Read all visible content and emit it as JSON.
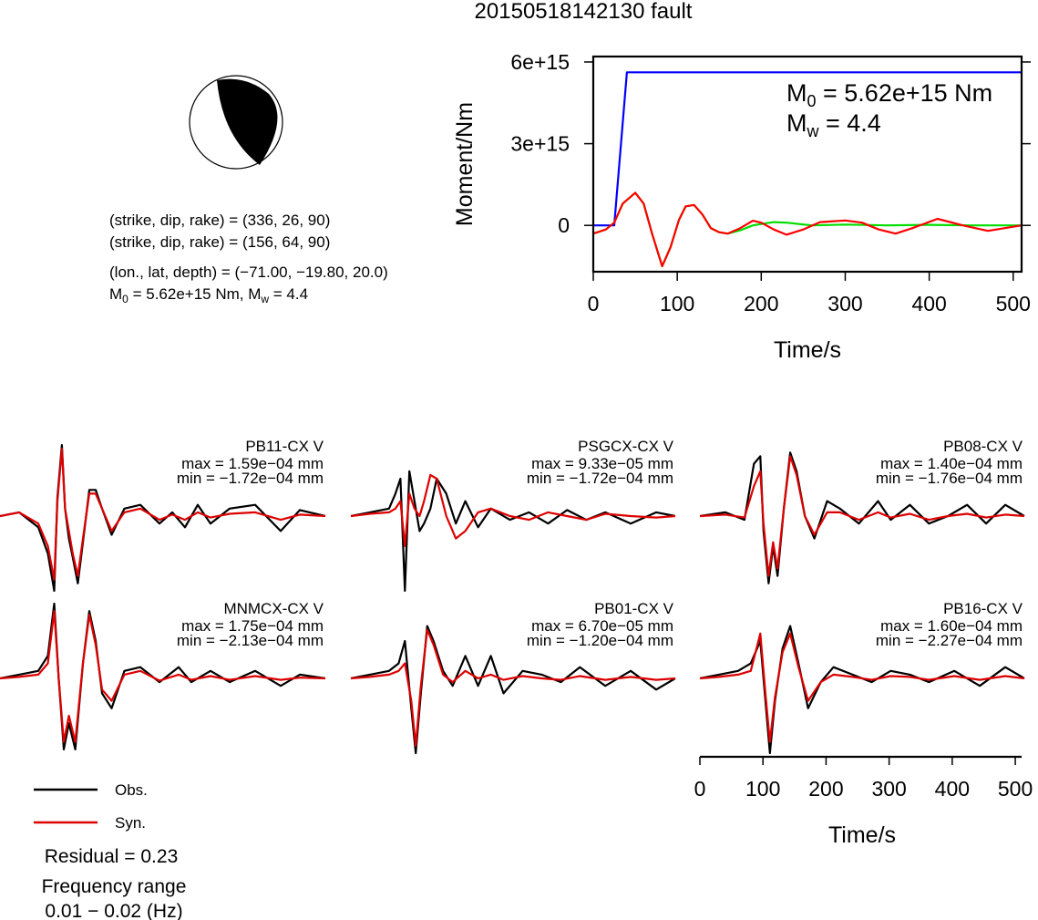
{
  "title": "20150518142130 fault",
  "mechanism": {
    "line1": "(strike, dip, rake) = (336, 26, 90)",
    "line2": "(strike, dip, rake) = (156, 64, 90)",
    "line3": "(lon., lat, depth) = (−71.00, −19.80, 20.0)",
    "line4_m0": "M",
    "line4_sub": "0",
    "line4_rest": " = 5.62e+15 Nm, M",
    "line4_sub2": "w",
    "line4_end": " = 4.4"
  },
  "chart_data": [
    {
      "type": "line",
      "name": "moment",
      "xlabel": "Time/s",
      "ylabel": "Moment/Nm",
      "xlim": [
        0,
        510
      ],
      "ylim": [
        -1700000000000000.0,
        6200000000000000.0
      ],
      "xticks": [
        "0",
        "100",
        "200",
        "300",
        "400",
        "500"
      ],
      "yticks": [
        "0",
        "3e+15",
        "6e+15"
      ],
      "annotation_m0": {
        "m": "M",
        "sub": "0",
        "rest": " = 5.62e+15 Nm"
      },
      "annotation_mw": {
        "m": "M",
        "sub": "w",
        "rest": " = 4.4"
      },
      "series": [
        {
          "color": "#0000ff",
          "x": [
            0,
            25,
            40,
            510
          ],
          "y": [
            0,
            0,
            5620000000000000.0,
            5620000000000000.0
          ]
        },
        {
          "color": "#00dd00",
          "x": [
            0,
            15,
            25,
            35,
            50,
            60,
            70,
            82,
            92,
            102,
            110,
            120,
            130,
            140,
            150,
            160,
            175,
            190,
            200,
            215,
            230,
            260,
            300,
            350,
            400,
            450,
            510
          ],
          "y": [
            -300000000000000.0,
            -150000000000000.0,
            100000000000000.0,
            800000000000000.0,
            1200000000000000.0,
            800000000000000.0,
            -300000000000000.0,
            -1500000000000000.0,
            -800000000000000.0,
            200000000000000.0,
            700000000000000.0,
            750000000000000.0,
            400000000000000.0,
            -100000000000000.0,
            -250000000000000.0,
            -300000000000000.0,
            -180000000000000.0,
            0,
            50000000000000.0,
            120000000000000.0,
            100000000000000.0,
            0,
            30000000000000.0,
            0,
            20000000000000.0,
            0,
            0
          ]
        },
        {
          "color": "#ff0000",
          "x": [
            0,
            15,
            25,
            35,
            50,
            60,
            70,
            82,
            92,
            102,
            110,
            120,
            130,
            140,
            150,
            160,
            175,
            190,
            200,
            215,
            230,
            250,
            270,
            300,
            320,
            340,
            360,
            380,
            410,
            440,
            470,
            510
          ],
          "y": [
            -300000000000000.0,
            -150000000000000.0,
            100000000000000.0,
            800000000000000.0,
            1200000000000000.0,
            800000000000000.0,
            -300000000000000.0,
            -1500000000000000.0,
            -800000000000000.0,
            200000000000000.0,
            700000000000000.0,
            750000000000000.0,
            400000000000000.0,
            -100000000000000.0,
            -250000000000000.0,
            -300000000000000.0,
            -100000000000000.0,
            170000000000000.0,
            100000000000000.0,
            -150000000000000.0,
            -340000000000000.0,
            -150000000000000.0,
            120000000000000.0,
            180000000000000.0,
            100000000000000.0,
            -150000000000000.0,
            -300000000000000.0,
            -100000000000000.0,
            240000000000000.0,
            0,
            -200000000000000.0,
            0
          ]
        }
      ]
    },
    {
      "type": "line",
      "name": "waveforms",
      "xlabel": "Time/s",
      "xlim": [
        0,
        510
      ],
      "xticks": [
        "0",
        "100",
        "200",
        "300",
        "400",
        "500"
      ],
      "legend": {
        "obs": "Obs.",
        "syn": "Syn."
      },
      "colors": {
        "obs": "#000000",
        "syn": "#dd0000"
      },
      "stations": [
        {
          "name": "PB11-CX V",
          "max": "max = 1.59e−04 mm",
          "min": "min = −1.72e−04 mm",
          "t": [
            0,
            30,
            60,
            75,
            85,
            90,
            97,
            102,
            108,
            114,
            122,
            130,
            140,
            150,
            160,
            175,
            195,
            220,
            250,
            270,
            290,
            310,
            330,
            360,
            400,
            440,
            470,
            510
          ],
          "obs": [
            0,
            0.05,
            -0.15,
            -0.5,
            -1.0,
            0.25,
            0.95,
            0.1,
            -0.3,
            -0.55,
            -0.9,
            -0.35,
            0.35,
            0.35,
            0.1,
            -0.25,
            0.1,
            0.15,
            -0.1,
            0.05,
            -0.15,
            0.15,
            -0.1,
            0.1,
            0.15,
            -0.2,
            0.08,
            0
          ],
          "syn": [
            0,
            0.05,
            -0.1,
            -0.4,
            -0.85,
            0.2,
            0.9,
            0.1,
            -0.2,
            -0.5,
            -0.8,
            -0.3,
            0.3,
            0.3,
            0.1,
            -0.2,
            0.05,
            0.1,
            -0.05,
            0.02,
            -0.05,
            0.05,
            -0.02,
            0.03,
            0.05,
            -0.05,
            0.02,
            0
          ]
        },
        {
          "name": "PSGCX-CX V",
          "max": "max = 9.33e−05 mm",
          "min": "min = −1.72e−04 mm",
          "t": [
            0,
            30,
            60,
            70,
            78,
            85,
            92,
            100,
            108,
            115,
            125,
            135,
            150,
            165,
            180,
            200,
            220,
            250,
            280,
            310,
            340,
            370,
            400,
            440,
            480,
            510
          ],
          "obs": [
            0,
            0.05,
            0.1,
            0.3,
            0.5,
            -1.0,
            0.6,
            0.2,
            -0.2,
            -0.1,
            0.1,
            0.5,
            0.3,
            -0.1,
            0.2,
            -0.15,
            0.1,
            -0.05,
            0.05,
            -0.1,
            0.08,
            -0.05,
            0.05,
            -0.1,
            0.05,
            0
          ],
          "syn": [
            0,
            0.03,
            0.05,
            0.1,
            0.2,
            -0.4,
            0.3,
            0.1,
            0.0,
            0.2,
            0.55,
            0.5,
            0.0,
            -0.3,
            -0.2,
            0.05,
            0.1,
            0.0,
            -0.05,
            0.05,
            0.0,
            -0.05,
            0.03,
            0.0,
            -0.02,
            0
          ]
        },
        {
          "name": "PB08-CX V",
          "max": "max = 1.40e−04 mm",
          "min": "min = −1.76e−04 mm",
          "t": [
            0,
            40,
            70,
            85,
            95,
            100,
            108,
            115,
            122,
            132,
            142,
            152,
            165,
            180,
            200,
            220,
            250,
            280,
            300,
            330,
            360,
            390,
            420,
            450,
            480,
            510
          ],
          "obs": [
            0,
            0.05,
            -0.05,
            0.7,
            0.8,
            -0.2,
            -0.9,
            -0.4,
            -0.8,
            0.1,
            0.85,
            0.6,
            0.0,
            -0.3,
            0.2,
            0.1,
            -0.1,
            0.2,
            -0.05,
            0.15,
            -0.1,
            0.0,
            0.15,
            -0.1,
            0.15,
            0
          ],
          "syn": [
            0,
            0.02,
            -0.02,
            0.4,
            0.6,
            -0.1,
            -0.8,
            -0.35,
            -0.7,
            0.1,
            0.8,
            0.55,
            0.0,
            -0.25,
            0.05,
            0.05,
            -0.05,
            0.05,
            -0.02,
            0.03,
            -0.05,
            0.0,
            0.03,
            -0.02,
            0.02,
            0
          ]
        },
        {
          "name": "MNMCX-CX V",
          "max": "max = 1.75e−04 mm",
          "min": "min = −2.13e−04 mm",
          "t": [
            0,
            30,
            60,
            75,
            85,
            92,
            100,
            108,
            118,
            130,
            140,
            150,
            160,
            175,
            195,
            220,
            250,
            280,
            300,
            330,
            360,
            400,
            440,
            470,
            510
          ],
          "obs": [
            0,
            0.05,
            0.1,
            0.3,
            1.0,
            0.0,
            -0.95,
            -0.6,
            -0.95,
            0.2,
            0.9,
            0.5,
            -0.2,
            -0.4,
            0.1,
            0.15,
            -0.05,
            0.15,
            -0.05,
            0.1,
            -0.05,
            0.1,
            -0.1,
            0.05,
            0
          ],
          "syn": [
            0,
            0.02,
            0.05,
            0.2,
            0.9,
            0.0,
            -0.85,
            -0.5,
            -0.85,
            0.2,
            0.85,
            0.45,
            -0.15,
            -0.3,
            0.05,
            0.1,
            -0.03,
            0.05,
            -0.02,
            0.03,
            -0.02,
            0.03,
            -0.02,
            0.01,
            0
          ]
        },
        {
          "name": "PB01-CX V",
          "max": "max = 6.70e−05 mm",
          "min": "min = −1.20e−04 mm",
          "t": [
            0,
            30,
            60,
            75,
            85,
            95,
            102,
            110,
            120,
            130,
            145,
            160,
            180,
            200,
            220,
            240,
            270,
            300,
            330,
            360,
            400,
            440,
            480,
            510
          ],
          "obs": [
            0,
            0.05,
            0.1,
            0.2,
            0.5,
            -0.4,
            -1.0,
            -0.2,
            0.7,
            0.5,
            0.1,
            -0.1,
            0.3,
            -0.1,
            0.3,
            -0.2,
            0.1,
            0.05,
            -0.05,
            0.15,
            -0.1,
            0.1,
            -0.15,
            0
          ],
          "syn": [
            0,
            0.02,
            0.05,
            0.1,
            0.2,
            -0.3,
            -0.9,
            -0.1,
            0.65,
            0.45,
            0.05,
            -0.05,
            0.1,
            0.0,
            0.05,
            -0.02,
            0.03,
            0.0,
            -0.02,
            0.03,
            -0.02,
            0.02,
            -0.02,
            0
          ]
        },
        {
          "name": "PB16-CX V",
          "max": "max = 1.60e−04 mm",
          "min": "min = −2.27e−04 mm",
          "t": [
            0,
            30,
            60,
            80,
            95,
            103,
            110,
            118,
            130,
            142,
            155,
            170,
            190,
            210,
            240,
            270,
            300,
            330,
            360,
            400,
            440,
            480,
            510
          ],
          "obs": [
            0,
            0.05,
            0.1,
            0.2,
            0.5,
            -0.3,
            -1.0,
            -0.3,
            0.4,
            0.7,
            0.2,
            -0.4,
            -0.05,
            0.15,
            0.05,
            -0.05,
            0.1,
            0.05,
            -0.05,
            0.1,
            -0.1,
            0.15,
            0
          ],
          "syn": [
            0,
            0.02,
            0.05,
            0.1,
            0.6,
            -0.2,
            -0.85,
            -0.25,
            0.35,
            0.6,
            0.15,
            -0.3,
            -0.05,
            0.05,
            0.02,
            -0.02,
            0.03,
            0.02,
            -0.02,
            0.03,
            -0.02,
            0.03,
            0
          ]
        }
      ]
    }
  ],
  "residual": "Residual = 0.23",
  "freq_label": "Frequency range",
  "freq_range": "0.01 − 0.02 (Hz)"
}
